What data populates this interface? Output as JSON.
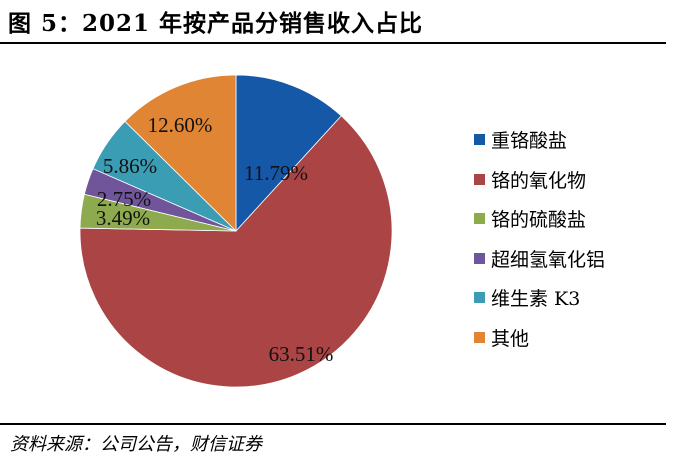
{
  "header": {
    "title": "图 5：2021 年按产品分销售收入占比"
  },
  "footer": {
    "source": "资料来源：公司公告，财信证券"
  },
  "legend": {
    "items": [
      {
        "label": "重铬酸盐",
        "color": "#1558a8"
      },
      {
        "label": "铬的氧化物",
        "color": "#ab4444"
      },
      {
        "label": "铬的硫酸盐",
        "color": "#8eaa4e"
      },
      {
        "label": "超细氢氧化铝",
        "color": "#70559b"
      },
      {
        "label": "维生素 K3",
        "color": "#3b9db4"
      },
      {
        "label": "其他",
        "color": "#e08534"
      }
    ]
  },
  "labels": [
    "11.79%",
    "63.51%",
    "3.49%",
    "2.75%",
    "5.86%",
    "12.60%"
  ],
  "chart_data": {
    "type": "pie",
    "title": "图 5：2021 年按产品分销售收入占比",
    "categories": [
      "重铬酸盐",
      "铬的氧化物",
      "铬的硫酸盐",
      "超细氢氧化铝",
      "维生素 K3",
      "其他"
    ],
    "values": [
      11.79,
      63.51,
      3.49,
      2.75,
      5.86,
      12.6
    ],
    "unit": "%",
    "colors": [
      "#1558a8",
      "#ab4444",
      "#8eaa4e",
      "#70559b",
      "#3b9db4",
      "#e08534"
    ],
    "start_angle": "12 o'clock",
    "direction": "clockwise",
    "legend_position": "right",
    "data_labels": true,
    "source": "资料来源：公司公告，财信证券"
  }
}
